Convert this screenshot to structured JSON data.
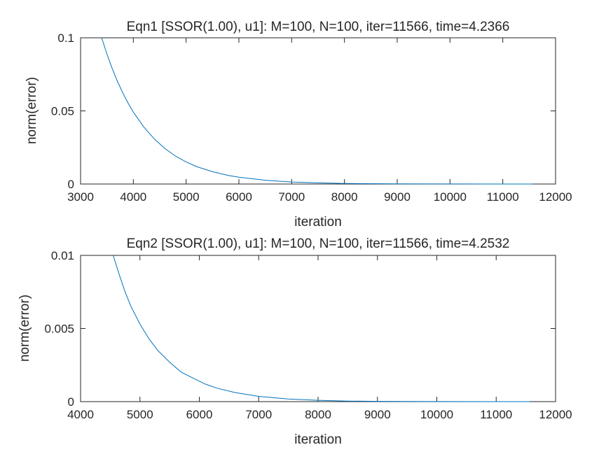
{
  "chart_data": [
    {
      "type": "line",
      "title": "Eqn1 [SSOR(1.00), u1]: M=100, N=100, iter=11566, time=4.2366",
      "xlabel": "iteration",
      "ylabel": "norm(error)",
      "xlim": [
        3000,
        12000
      ],
      "ylim": [
        0,
        0.1
      ],
      "xticks": [
        3000,
        4000,
        5000,
        6000,
        7000,
        8000,
        9000,
        10000,
        11000,
        12000
      ],
      "xtick_labels": [
        "3000",
        "4000",
        "5000",
        "6000",
        "7000",
        "8000",
        "9000",
        "10000",
        "11000",
        "12000"
      ],
      "yticks": [
        0,
        0.05,
        0.1
      ],
      "ytick_labels": [
        "0",
        "0.05",
        "0.1"
      ],
      "grid": false,
      "color": "#0072bd",
      "series": [
        {
          "x": [
            3400,
            3500,
            3600,
            3700,
            3800,
            3900,
            4000,
            4200,
            4400,
            4600,
            4800,
            5000,
            5200,
            5500,
            5800,
            6000,
            6500,
            7000,
            7500,
            8000,
            9000,
            10000,
            11000,
            11566
          ],
          "y": [
            0.1,
            0.0888,
            0.0789,
            0.0701,
            0.0623,
            0.0554,
            0.0492,
            0.0389,
            0.0307,
            0.0242,
            0.0191,
            0.0151,
            0.0119,
            0.0084,
            0.0059,
            0.0047,
            0.0026,
            0.0014,
            0.0008,
            0.0004,
            0.0001,
            4e-05,
            1e-05,
            6e-06
          ]
        }
      ]
    },
    {
      "type": "line",
      "title": "Eqn2 [SSOR(1.00), u1]: M=100, N=100, iter=11566, time=4.2532",
      "xlabel": "iteration",
      "ylabel": "norm(error)",
      "xlim": [
        4000,
        12000
      ],
      "ylim": [
        0,
        0.01
      ],
      "xticks": [
        4000,
        5000,
        6000,
        7000,
        8000,
        9000,
        10000,
        11000,
        12000
      ],
      "xtick_labels": [
        "4000",
        "5000",
        "6000",
        "7000",
        "8000",
        "9000",
        "10000",
        "11000",
        "12000"
      ],
      "yticks": [
        0,
        0.005,
        0.01
      ],
      "ytick_labels": [
        "0",
        "0.005",
        "0.01"
      ],
      "grid": false,
      "color": "#0072bd",
      "series": [
        {
          "x": [
            4550,
            4650,
            4750,
            4850,
            5000,
            5150,
            5300,
            5500,
            5700,
            5900,
            6100,
            6300,
            6600,
            7000,
            7500,
            8000,
            8500,
            9000,
            10000,
            11000,
            11566
          ],
          "y": [
            0.01,
            0.0087,
            0.0075,
            0.0065,
            0.0053,
            0.0043,
            0.0035,
            0.0027,
            0.002,
            0.0016,
            0.0012,
            0.00092,
            0.00062,
            0.00036,
            0.00018,
            9e-05,
            4e-05,
            2e-05,
            5e-06,
            1e-06,
            5e-07
          ]
        }
      ]
    }
  ]
}
